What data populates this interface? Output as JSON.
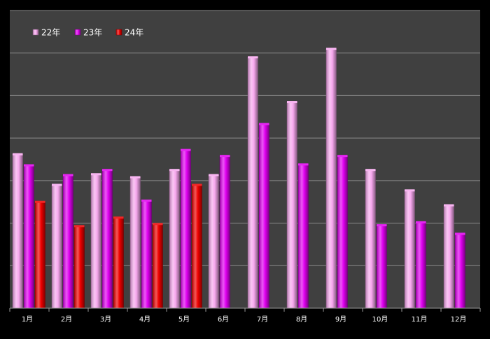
{
  "chart_data": {
    "type": "bar",
    "title": "",
    "xlabel": "",
    "ylabel": "",
    "categories": [
      "1月",
      "2月",
      "3月",
      "4月",
      "5月",
      "6月",
      "7月",
      "8月",
      "9月",
      "10月",
      "11月",
      "12月"
    ],
    "series": [
      {
        "name": "22年",
        "color": "#f7a8ee",
        "values": [
          36.2,
          29.0,
          31.5,
          30.8,
          32.5,
          31.3,
          59.0,
          48.5,
          61.0,
          32.5,
          27.7,
          24.2
        ]
      },
      {
        "name": "23年",
        "color": "#e000f0",
        "values": [
          33.6,
          31.3,
          32.5,
          25.3,
          37.2,
          35.8,
          43.3,
          33.8,
          35.8,
          19.5,
          20.2,
          17.5
        ]
      },
      {
        "name": "24年",
        "color": "#ee0000",
        "values": [
          25.0,
          19.3,
          21.3,
          19.8,
          29.0,
          null,
          null,
          null,
          null,
          null,
          null,
          null
        ]
      }
    ],
    "ylim": [
      0,
      70
    ],
    "y_grid_step": 10,
    "grid": true,
    "y_tick_labels_visible": false,
    "legend_position": "top-left",
    "background_color": "#404040",
    "frame_color": "#000000",
    "gridline_color": "#8a8a8a",
    "text_color": "#ffffff"
  }
}
